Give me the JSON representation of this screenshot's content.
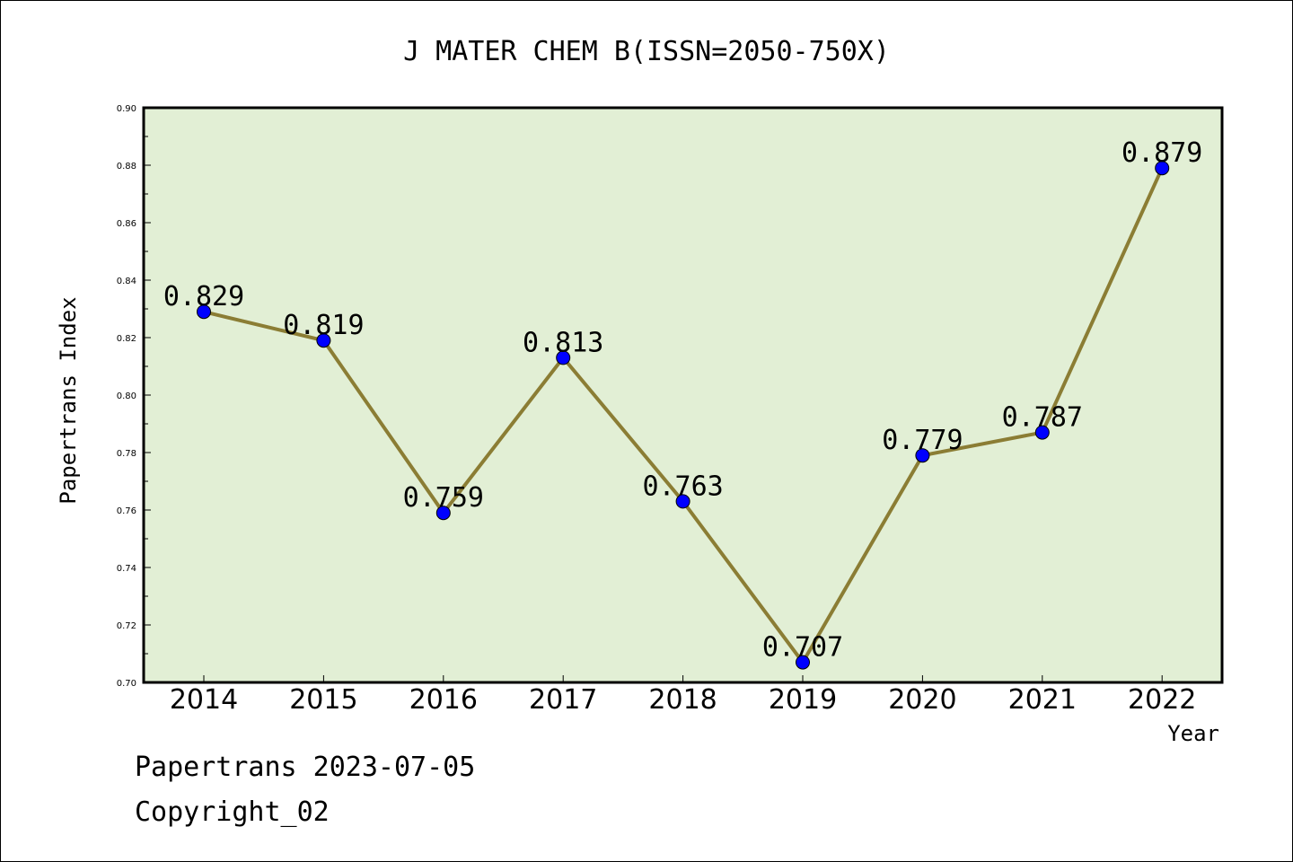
{
  "chart_data": {
    "type": "line",
    "title": "J MATER CHEM B(ISSN=2050-750X)",
    "xlabel": "Year",
    "ylabel": "Papertrans Index",
    "categories": [
      "2014",
      "2015",
      "2016",
      "2017",
      "2018",
      "2019",
      "2020",
      "2021",
      "2022"
    ],
    "series": [
      {
        "values": [
          0.829,
          0.819,
          0.759,
          0.813,
          0.763,
          0.707,
          0.779,
          0.787,
          0.879
        ],
        "labels": [
          "0.829",
          "0.819",
          "0.759",
          "0.813",
          "0.763",
          "0.707",
          "0.779",
          "0.787",
          "0.879"
        ]
      }
    ],
    "ylim": [
      0.7,
      0.9
    ],
    "yticks": [
      "0.70",
      "0.72",
      "0.74",
      "0.76",
      "0.78",
      "0.80",
      "0.82",
      "0.84",
      "0.86",
      "0.88",
      "0.90"
    ],
    "grid": false,
    "colors": {
      "plot_background": "#e2efd5",
      "line": "#8b7d34",
      "marker": "#0000ff"
    }
  },
  "footer": {
    "line1": "Papertrans 2023-07-05",
    "line2": "Copyright_02"
  }
}
